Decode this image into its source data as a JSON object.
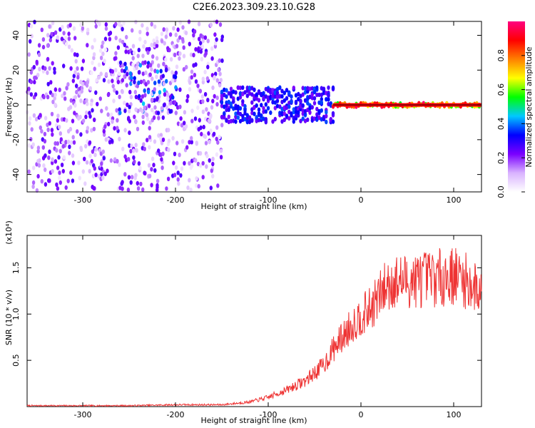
{
  "title": "C2E6.2023.309.23.10.G28",
  "chart_data": [
    {
      "type": "heatmap",
      "xlabel": "Height of straight line (km)",
      "ylabel": "Frequency (Hz)",
      "xlim": [
        -360,
        130
      ],
      "ylim": [
        -50,
        48
      ],
      "xticks": [
        -300,
        -200,
        -100,
        0,
        100
      ],
      "yticks": [
        -40,
        -20,
        0,
        20,
        40
      ],
      "colorbar": {
        "label": "Normalized spectral amplitude",
        "range": [
          0.0,
          1.0
        ],
        "ticks": [
          0.0,
          0.2,
          0.4,
          0.6,
          0.8
        ],
        "colormap": [
          "#ffffff",
          "#d9b3ff",
          "#7a00ff",
          "#0000ff",
          "#00c8ff",
          "#00ff00",
          "#ffff00",
          "#ff8000",
          "#ff0000",
          "#ff0080"
        ]
      },
      "regions": [
        {
          "x": [
            -360,
            -150
          ],
          "freq_span": [
            -50,
            48
          ],
          "amplitude": 0.15
        },
        {
          "x": [
            -260,
            -200
          ],
          "freq_span": [
            -5,
            25
          ],
          "amplitude": 0.25
        },
        {
          "x": [
            -150,
            -30
          ],
          "freq_center": 0,
          "freq_halfwidth": 10,
          "amplitude": 0.35
        },
        {
          "x": [
            -30,
            130
          ],
          "freq_center": 0,
          "freq_halfwidth": 1,
          "amplitude": 0.9
        }
      ]
    },
    {
      "type": "line",
      "xlabel": "Height of straight line (km)",
      "ylabel": "SNR (10 * v/v)",
      "multiplier": "(x10⁴)",
      "xlim": [
        -360,
        130
      ],
      "ylim": [
        0,
        1.85
      ],
      "xticks": [
        -300,
        -200,
        -100,
        0,
        100
      ],
      "yticks": [
        0.5,
        1.0,
        1.5
      ],
      "ytick_labels": [
        "0.5",
        "1.0",
        "1.5"
      ],
      "series": [
        {
          "color": "#ee3333",
          "x": [
            -360,
            -300,
            -250,
            -200,
            -150,
            -120,
            -100,
            -80,
            -60,
            -40,
            -30,
            -20,
            -10,
            0,
            10,
            20,
            30,
            50,
            70,
            90,
            100,
            110,
            120,
            130
          ],
          "y": [
            0.01,
            0.01,
            0.01,
            0.02,
            0.02,
            0.05,
            0.1,
            0.18,
            0.28,
            0.45,
            0.62,
            0.75,
            0.88,
            0.98,
            1.05,
            1.2,
            1.33,
            1.36,
            1.38,
            1.4,
            1.42,
            1.38,
            1.3,
            1.25
          ]
        }
      ]
    }
  ]
}
